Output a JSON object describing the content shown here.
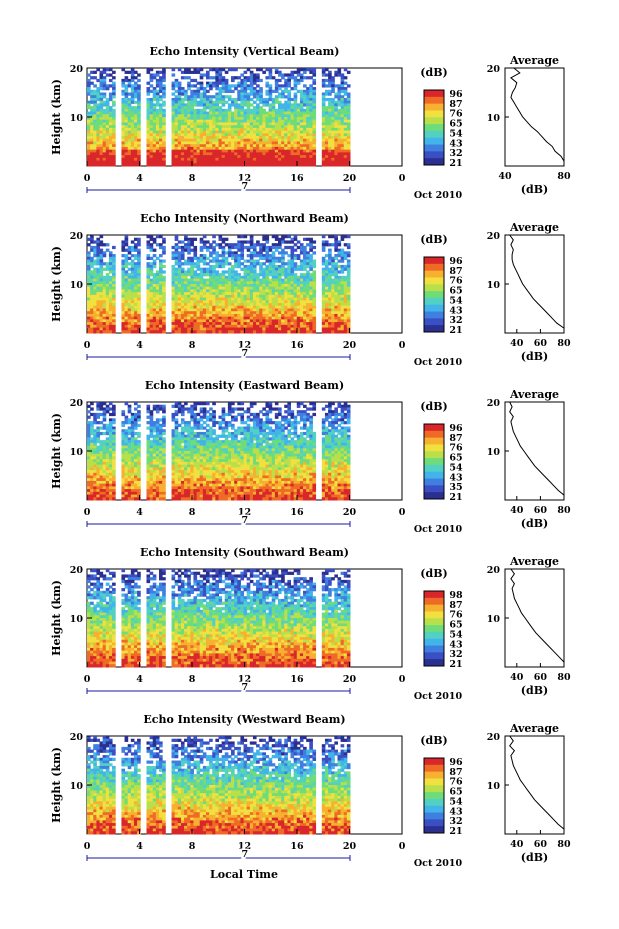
{
  "figure": {
    "xlabel": "Local Time",
    "date_label": "Oct 2010",
    "day_label": "7",
    "colorbar_label": "(dB)",
    "average_title": "Average",
    "average_xlabel": "(dB)"
  },
  "colors": {
    "scale": [
      "#2b2f8f",
      "#3a4fc4",
      "#3f7fe0",
      "#41b4ea",
      "#52d0c4",
      "#6fdc7a",
      "#b9e04a",
      "#f0e040",
      "#f7b030",
      "#ef6a26",
      "#d8262a"
    ]
  },
  "chart_data": [
    {
      "type": "heatmap",
      "title": "Echo Intensity (Vertical Beam)",
      "xlabel": "",
      "ylabel": "Height (km)",
      "xlim": [
        0,
        24
      ],
      "ylim": [
        0,
        20
      ],
      "x_ticks": [
        "0",
        "4",
        "8",
        "12",
        "16",
        "20",
        "0"
      ],
      "y_ticks": [
        "10",
        "20"
      ],
      "colorbar": {
        "ticks": [
          "96",
          "87",
          "76",
          "65",
          "54",
          "43",
          "32",
          "21"
        ],
        "range": [
          21,
          96
        ]
      },
      "data_gaps_hours": [
        [
          2.2,
          2.6
        ],
        [
          4.1,
          4.5
        ],
        [
          5.9,
          6.4
        ],
        [
          17.5,
          17.9
        ]
      ],
      "avg_profile": {
        "xlim": [
          40,
          80
        ],
        "x_ticks": [
          "40",
          "80"
        ],
        "y_ticks": [
          "10",
          "20"
        ],
        "height_km": [
          1,
          2,
          3,
          4,
          5,
          6,
          7,
          8,
          9,
          10,
          11,
          12,
          13,
          14,
          15,
          16,
          17,
          18,
          19,
          20
        ],
        "db": [
          80,
          78,
          74,
          72,
          68,
          65,
          62,
          58,
          55,
          52,
          50,
          48,
          46,
          44,
          45,
          47,
          48,
          44,
          50,
          46
        ]
      }
    },
    {
      "type": "heatmap",
      "title": "Echo Intensity (Northward Beam)",
      "xlabel": "",
      "ylabel": "Height (km)",
      "xlim": [
        0,
        24
      ],
      "ylim": [
        0,
        20
      ],
      "x_ticks": [
        "0",
        "4",
        "8",
        "12",
        "16",
        "20",
        "0"
      ],
      "y_ticks": [
        "10",
        "20"
      ],
      "colorbar": {
        "ticks": [
          "96",
          "87",
          "76",
          "65",
          "54",
          "43",
          "32",
          "21"
        ],
        "range": [
          21,
          96
        ]
      },
      "data_gaps_hours": [
        [
          2.2,
          2.6
        ],
        [
          4.1,
          4.5
        ],
        [
          5.9,
          6.4
        ],
        [
          17.5,
          17.9
        ]
      ],
      "avg_profile": {
        "xlim": [
          30,
          80
        ],
        "x_ticks": [
          "40",
          "60",
          "80"
        ],
        "y_ticks": [
          "10",
          "20"
        ],
        "height_km": [
          1,
          2,
          3,
          4,
          5,
          6,
          7,
          8,
          9,
          10,
          11,
          12,
          13,
          14,
          15,
          16,
          17,
          18,
          19,
          20
        ],
        "db": [
          80,
          74,
          70,
          66,
          62,
          58,
          54,
          51,
          48,
          45,
          43,
          41,
          39,
          37,
          36,
          36,
          37,
          35,
          37,
          34
        ]
      }
    },
    {
      "type": "heatmap",
      "title": "Echo Intensity (Eastward Beam)",
      "xlabel": "",
      "ylabel": "Height (km)",
      "xlim": [
        0,
        24
      ],
      "ylim": [
        0,
        20
      ],
      "x_ticks": [
        "0",
        "4",
        "8",
        "12",
        "16",
        "20",
        "0"
      ],
      "y_ticks": [
        "10",
        "20"
      ],
      "colorbar": {
        "ticks": [
          "96",
          "87",
          "76",
          "65",
          "54",
          "43",
          "35",
          "21"
        ],
        "range": [
          21,
          96
        ]
      },
      "data_gaps_hours": [
        [
          2.2,
          2.6
        ],
        [
          4.1,
          4.5
        ],
        [
          5.9,
          6.4
        ],
        [
          17.5,
          17.9
        ]
      ],
      "avg_profile": {
        "xlim": [
          30,
          80
        ],
        "x_ticks": [
          "40",
          "60",
          "80"
        ],
        "y_ticks": [
          "10",
          "20"
        ],
        "height_km": [
          1,
          2,
          3,
          4,
          5,
          6,
          7,
          8,
          9,
          10,
          11,
          12,
          13,
          14,
          15,
          16,
          17,
          18,
          19,
          20
        ],
        "db": [
          80,
          75,
          71,
          67,
          63,
          59,
          55,
          52,
          49,
          46,
          43,
          41,
          39,
          37,
          36,
          35,
          37,
          34,
          36,
          34
        ]
      }
    },
    {
      "type": "heatmap",
      "title": "Echo Intensity (Southward Beam)",
      "xlabel": "",
      "ylabel": "Height (km)",
      "xlim": [
        0,
        24
      ],
      "ylim": [
        0,
        20
      ],
      "x_ticks": [
        "0",
        "4",
        "8",
        "12",
        "16",
        "20",
        "0"
      ],
      "y_ticks": [
        "10",
        "20"
      ],
      "colorbar": {
        "ticks": [
          "98",
          "87",
          "76",
          "65",
          "54",
          "43",
          "32",
          "21"
        ],
        "range": [
          21,
          98
        ]
      },
      "data_gaps_hours": [
        [
          2.2,
          2.6
        ],
        [
          4.1,
          4.5
        ],
        [
          5.9,
          6.4
        ],
        [
          17.5,
          17.9
        ]
      ],
      "avg_profile": {
        "xlim": [
          30,
          80
        ],
        "x_ticks": [
          "40",
          "60",
          "80"
        ],
        "y_ticks": [
          "10",
          "20"
        ],
        "height_km": [
          1,
          2,
          3,
          4,
          5,
          6,
          7,
          8,
          9,
          10,
          11,
          12,
          13,
          14,
          15,
          16,
          17,
          18,
          19,
          20
        ],
        "db": [
          80,
          76,
          72,
          68,
          64,
          60,
          56,
          53,
          50,
          47,
          44,
          42,
          40,
          38,
          37,
          36,
          38,
          35,
          38,
          35
        ]
      }
    },
    {
      "type": "heatmap",
      "title": "Echo Intensity (Westward Beam)",
      "xlabel": "",
      "ylabel": "Height (km)",
      "xlim": [
        0,
        24
      ],
      "ylim": [
        0,
        20
      ],
      "x_ticks": [
        "0",
        "4",
        "8",
        "12",
        "16",
        "20",
        "0"
      ],
      "y_ticks": [
        "10",
        "20"
      ],
      "colorbar": {
        "ticks": [
          "96",
          "87",
          "76",
          "65",
          "54",
          "43",
          "32",
          "21"
        ],
        "range": [
          21,
          96
        ]
      },
      "data_gaps_hours": [
        [
          2.2,
          2.6
        ],
        [
          4.1,
          4.5
        ],
        [
          5.9,
          6.4
        ],
        [
          17.5,
          17.9
        ]
      ],
      "avg_profile": {
        "xlim": [
          30,
          80
        ],
        "x_ticks": [
          "40",
          "60",
          "80"
        ],
        "y_ticks": [
          "10",
          "20"
        ],
        "height_km": [
          1,
          2,
          3,
          4,
          5,
          6,
          7,
          8,
          9,
          10,
          11,
          12,
          13,
          14,
          15,
          16,
          17,
          18,
          19,
          20
        ],
        "db": [
          80,
          75,
          71,
          67,
          63,
          59,
          55,
          52,
          49,
          46,
          43,
          41,
          39,
          37,
          36,
          35,
          38,
          34,
          37,
          34
        ]
      }
    }
  ]
}
